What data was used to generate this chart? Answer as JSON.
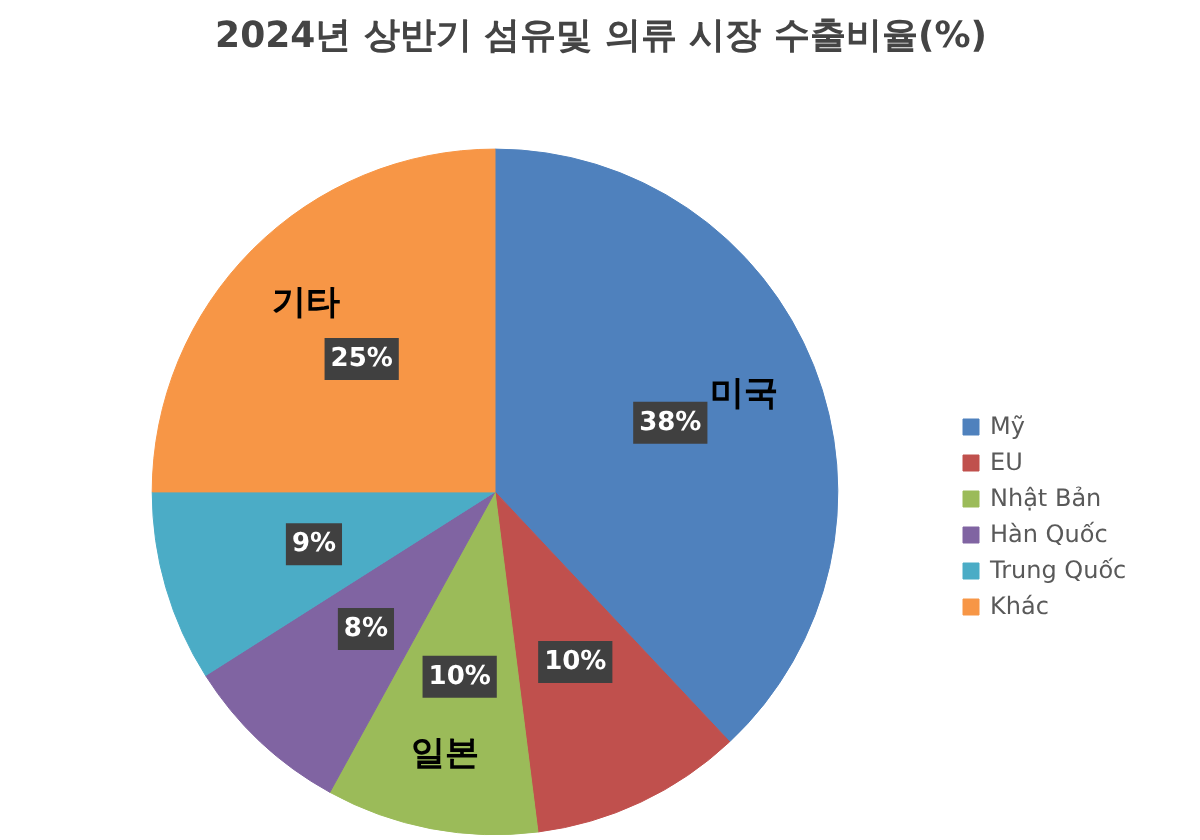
{
  "chart_data": {
    "type": "pie",
    "title": "2024년 상반기 섬유및 의류 시장 수출비율(%)",
    "categories": [
      "Mỹ",
      "EU",
      "Nhật Bản",
      "Hàn Quốc",
      "Trung Quốc",
      "Khác"
    ],
    "values": [
      38,
      10,
      10,
      8,
      9,
      25
    ],
    "colors": [
      "#4f81bd",
      "#c0504d",
      "#9bbb59",
      "#8064a2",
      "#4bacc6",
      "#f79646"
    ],
    "value_labels": [
      "38%",
      "10%",
      "10%",
      "8%",
      "9%",
      "25%"
    ],
    "annotations": [
      {
        "text": "미국",
        "x": "Mỹ"
      },
      {
        "text": "일본",
        "x": "Nhật Bản"
      },
      {
        "text": "기타",
        "x": "Khác"
      }
    ],
    "legend": "right"
  }
}
